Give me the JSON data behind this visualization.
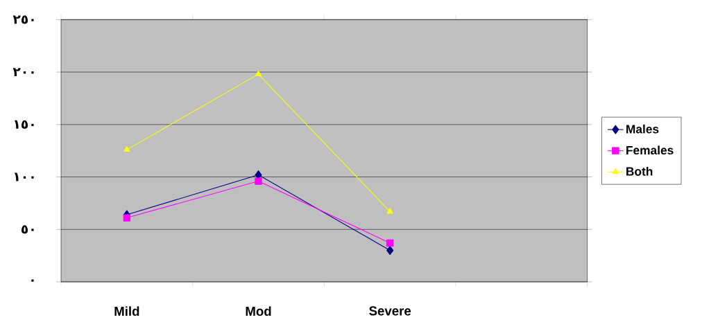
{
  "chart_data": {
    "type": "line",
    "categories": [
      "Mild",
      "Mod",
      "Severe",
      null
    ],
    "series": [
      {
        "name": "Males",
        "color": "#000080",
        "marker": "diamond",
        "values": [
          64,
          102,
          30,
          null
        ]
      },
      {
        "name": "Females",
        "color": "#ff00ff",
        "marker": "square",
        "values": [
          61,
          96,
          37,
          null
        ]
      },
      {
        "name": "Both",
        "color": "#ffff00",
        "marker": "triangle",
        "values": [
          126,
          198,
          67,
          null
        ]
      }
    ],
    "ylim": [
      0,
      250
    ],
    "yticks": [
      {
        "value": 0,
        "label": "٠"
      },
      {
        "value": 50,
        "label": "٥٠"
      },
      {
        "value": 100,
        "label": "١٠٠"
      },
      {
        "value": 150,
        "label": "١٥٠"
      },
      {
        "value": 200,
        "label": "٢٠٠"
      },
      {
        "value": 250,
        "label": "٢٥٠"
      }
    ],
    "grid": "y",
    "legend": "right",
    "line_style": "solid"
  }
}
